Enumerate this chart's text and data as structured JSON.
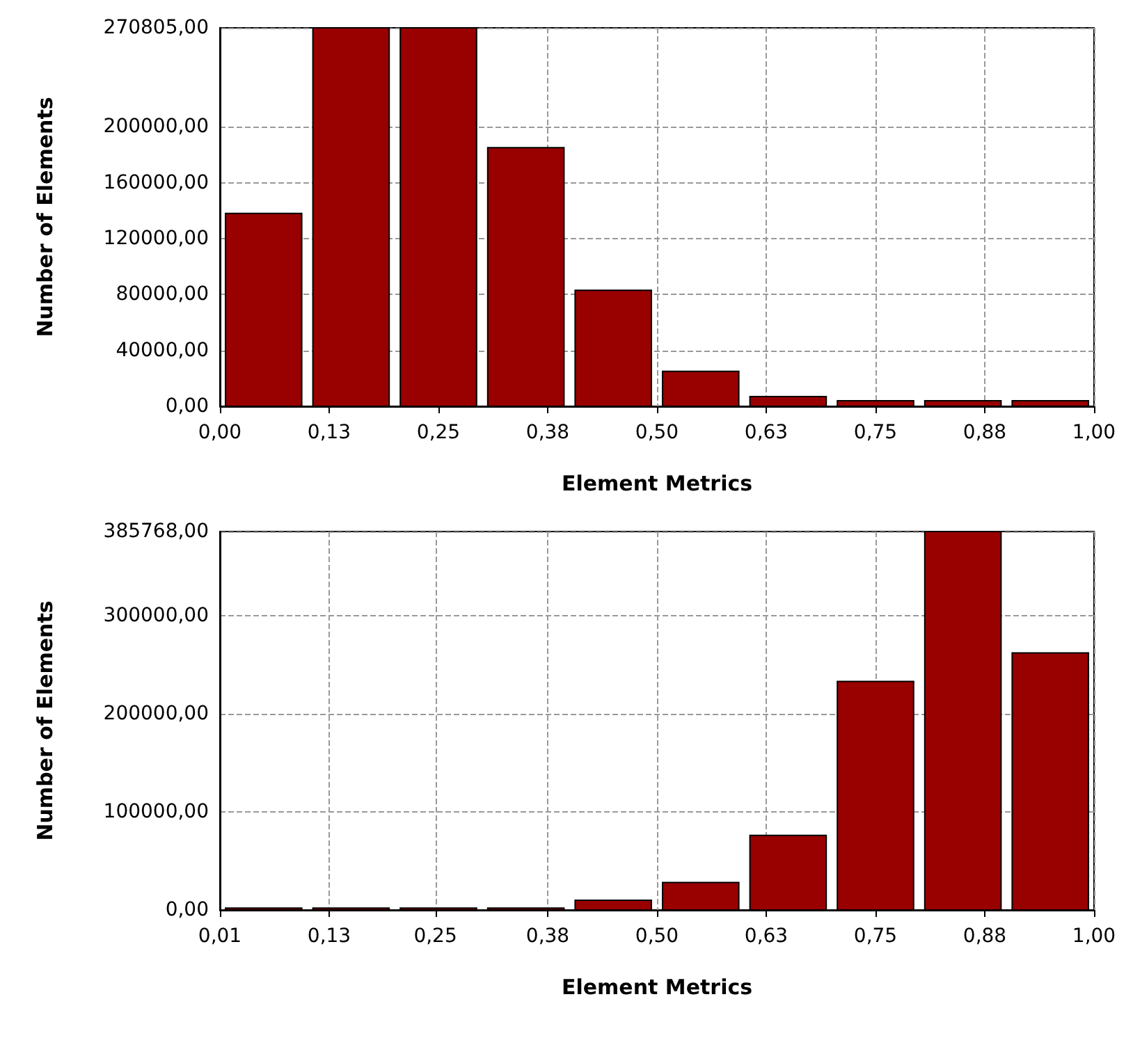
{
  "chart_data": [
    {
      "type": "histogram",
      "xlabel": "Element Metrics",
      "ylabel": "Number of Elements",
      "color": "#990000",
      "bins": [
        0,
        0.1,
        0.2,
        0.3,
        0.4,
        0.5,
        0.6,
        0.7,
        0.8,
        0.9,
        1.0
      ],
      "values": [
        138000,
        270805,
        270805,
        185000,
        83000,
        25000,
        7000,
        4000,
        4000,
        4000
      ],
      "xlim": [
        0,
        1
      ],
      "xticks": [
        {
          "value": 0,
          "label": "0,00"
        },
        {
          "value": 0.125,
          "label": "0,13"
        },
        {
          "value": 0.25,
          "label": "0,25"
        },
        {
          "value": 0.375,
          "label": "0,38"
        },
        {
          "value": 0.5,
          "label": "0,50"
        },
        {
          "value": 0.625,
          "label": "0,63"
        },
        {
          "value": 0.75,
          "label": "0,75"
        },
        {
          "value": 0.875,
          "label": "0,88"
        },
        {
          "value": 1,
          "label": "1,00"
        }
      ],
      "ylim": [
        0,
        270805
      ],
      "yticks": [
        {
          "value": 0,
          "label": "0,00"
        },
        {
          "value": 40000,
          "label": "40000,00"
        },
        {
          "value": 80000,
          "label": "80000,00"
        },
        {
          "value": 120000,
          "label": "120000,00"
        },
        {
          "value": 160000,
          "label": "160000,00"
        },
        {
          "value": 200000,
          "label": "200000,00"
        },
        {
          "value": 270805,
          "label": "270805,00"
        }
      ],
      "grid": true
    },
    {
      "type": "histogram",
      "xlabel": "Element Metrics",
      "ylabel": "Number of Elements",
      "color": "#990000",
      "bins": [
        0.01,
        0.109,
        0.208,
        0.307,
        0.406,
        0.505,
        0.604,
        0.703,
        0.802,
        0.901,
        1.0
      ],
      "values": [
        2000,
        2000,
        2000,
        2000,
        10000,
        28000,
        76000,
        233000,
        385768,
        262000
      ],
      "xlim": [
        0.01,
        1
      ],
      "xticks": [
        {
          "value": 0.01,
          "label": "0,01"
        },
        {
          "value": 0.13375,
          "label": "0,13"
        },
        {
          "value": 0.254,
          "label": "0,25"
        },
        {
          "value": 0.38125,
          "label": "0,38"
        },
        {
          "value": 0.505,
          "label": "0,50"
        },
        {
          "value": 0.62875,
          "label": "0,63"
        },
        {
          "value": 0.7525,
          "label": "0,75"
        },
        {
          "value": 0.87625,
          "label": "0,88"
        },
        {
          "value": 1,
          "label": "1,00"
        }
      ],
      "ylim": [
        0,
        385768
      ],
      "yticks": [
        {
          "value": 0,
          "label": "0,00"
        },
        {
          "value": 100000,
          "label": "100000,00"
        },
        {
          "value": 200000,
          "label": "200000,00"
        },
        {
          "value": 300000,
          "label": "300000,00"
        },
        {
          "value": 385768,
          "label": "385768,00"
        }
      ],
      "grid": true
    }
  ]
}
